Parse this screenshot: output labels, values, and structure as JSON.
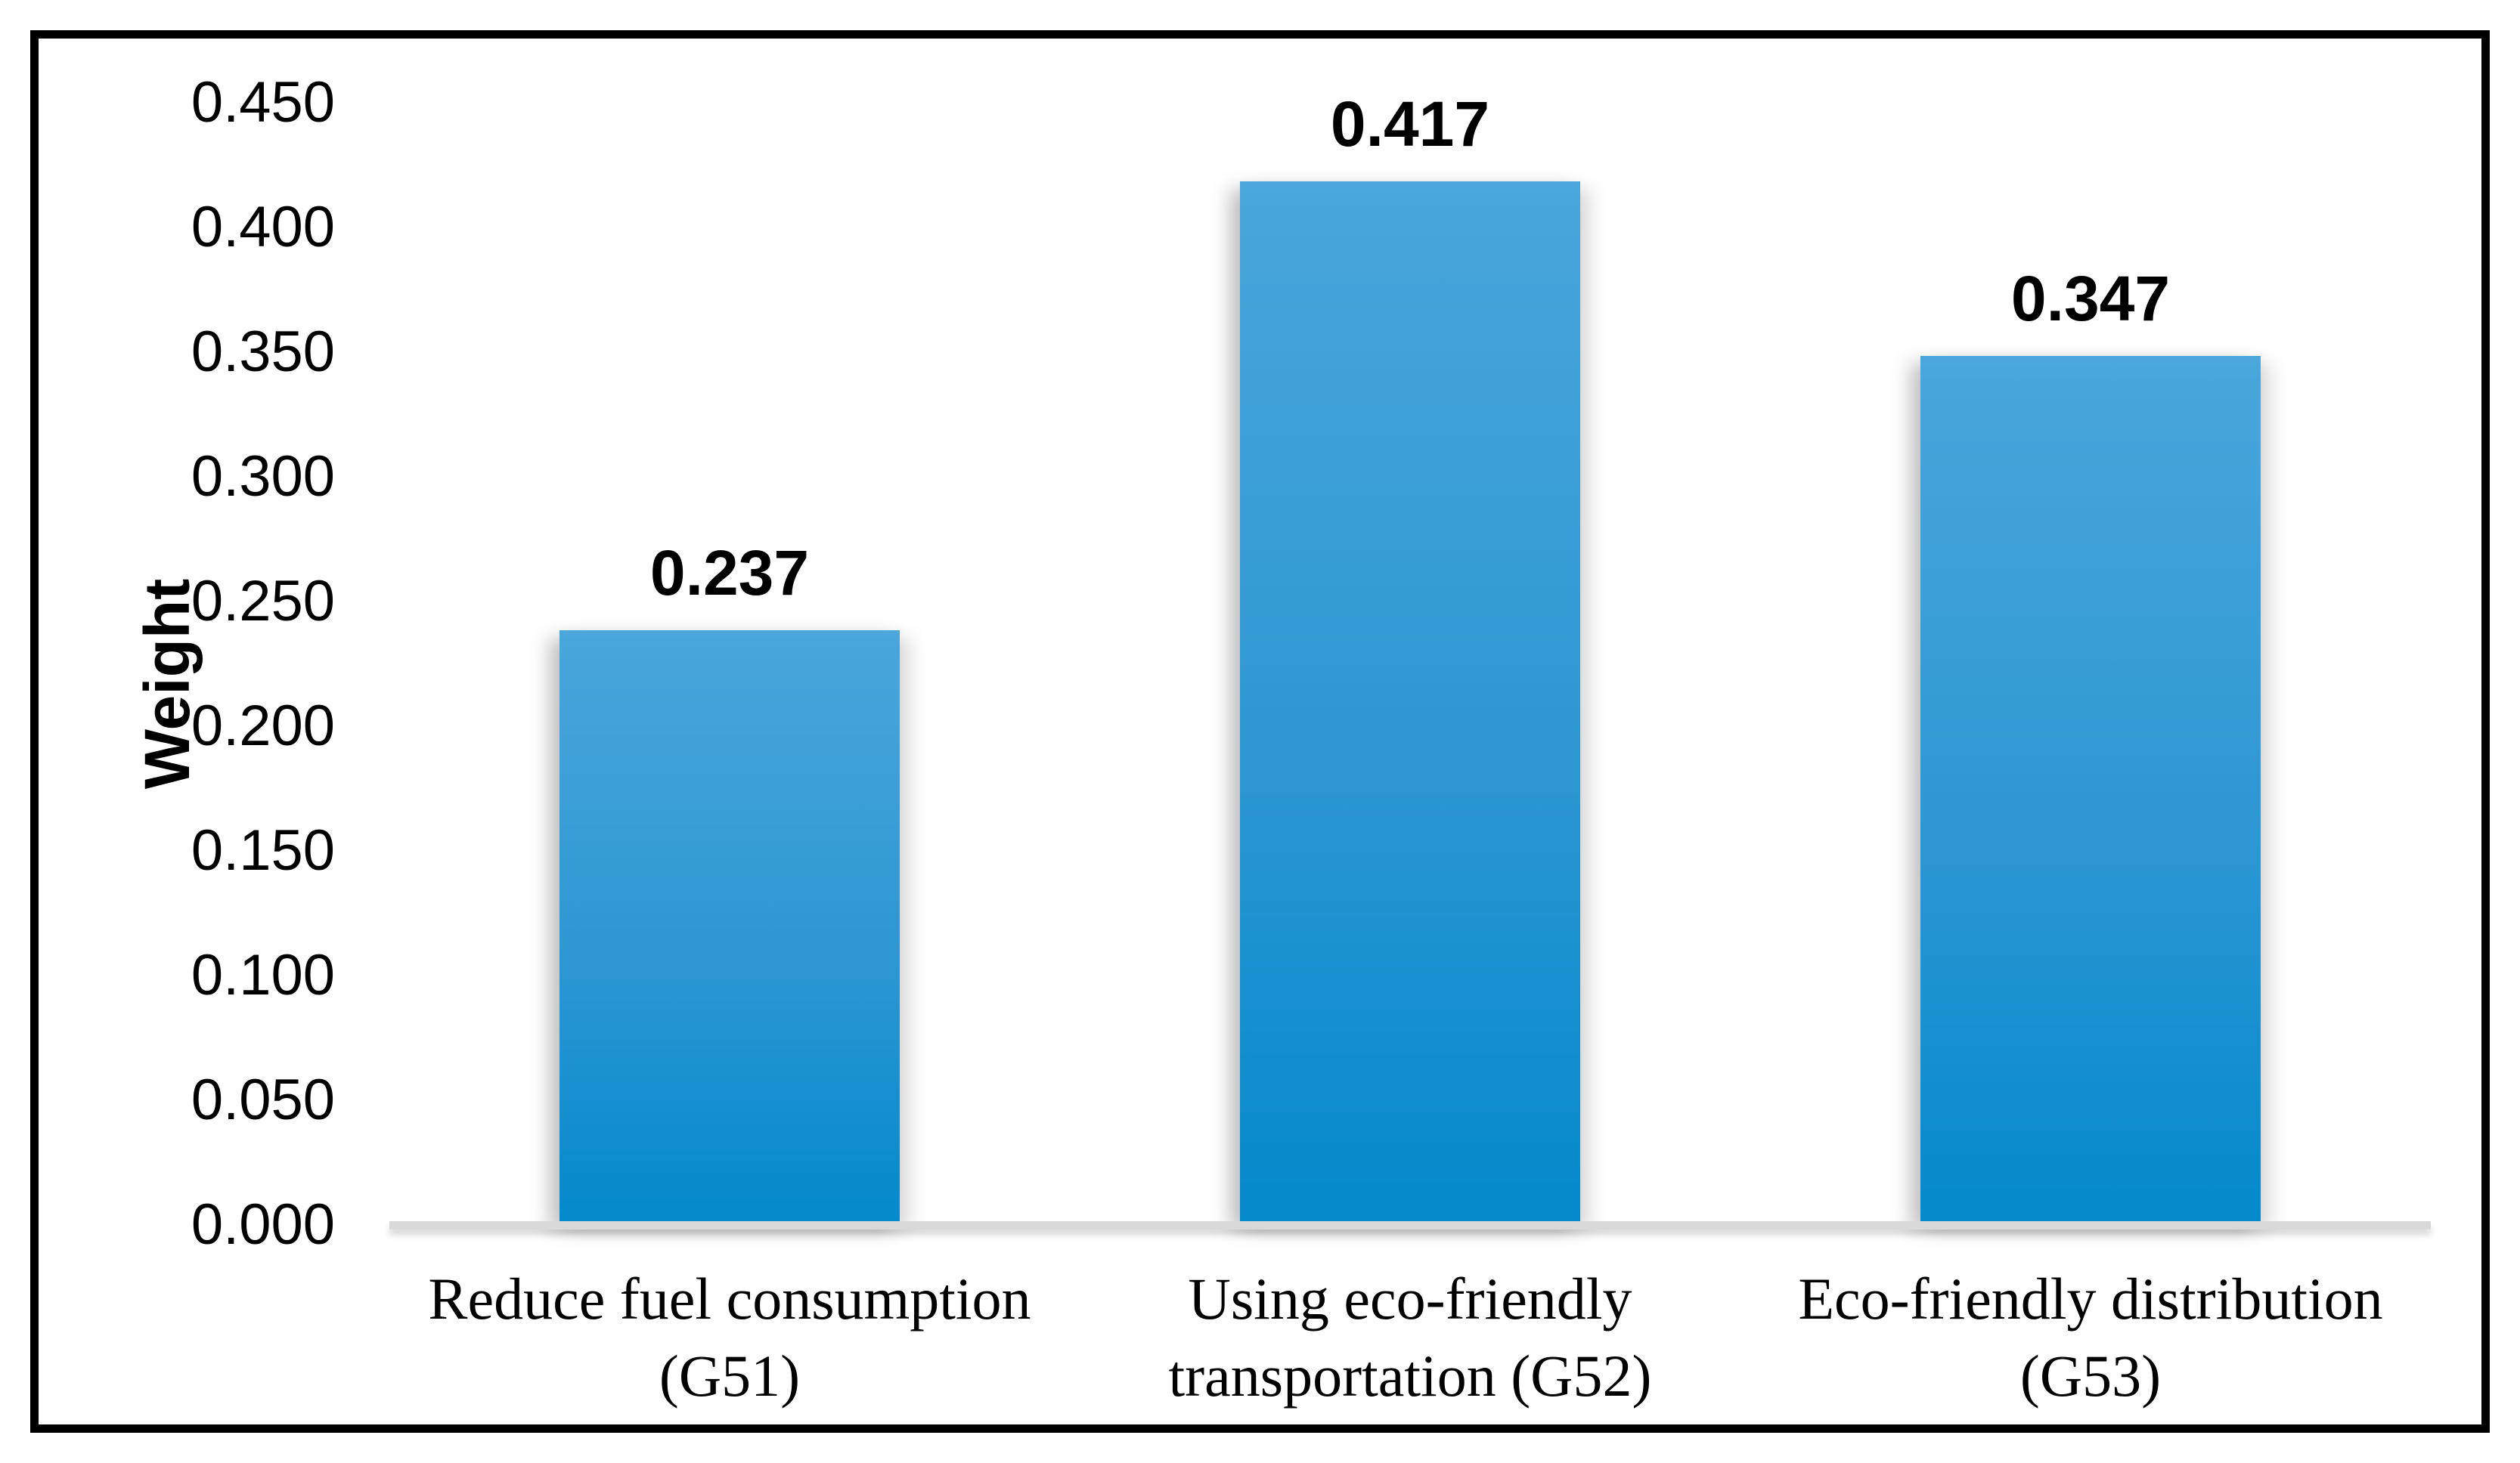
{
  "chart_data": {
    "type": "bar",
    "title": "",
    "xlabel": "",
    "ylabel": "Weight",
    "categories": [
      "Reduce fuel consumption (G51)",
      "Using eco-friendly transportation (G52)",
      "Eco-friendly distribution (G53)"
    ],
    "category_lines": [
      [
        "Reduce fuel consumption",
        "(G51)"
      ],
      [
        "Using eco-friendly",
        "transportation (G52)"
      ],
      [
        "Eco-friendly distribution",
        "(G53)"
      ]
    ],
    "values": [
      0.237,
      0.417,
      0.347
    ],
    "value_labels": [
      "0.237",
      "0.417",
      "0.347"
    ],
    "yticks": [
      "0.450",
      "0.400",
      "0.350",
      "0.300",
      "0.250",
      "0.200",
      "0.150",
      "0.100",
      "0.050",
      "0.000"
    ],
    "ylim": [
      0.0,
      0.45
    ],
    "ytick_step": 0.05,
    "grid": "off",
    "legend": "none",
    "bar_color_top": "#4aa6db",
    "bar_color_bottom": "#0489cb",
    "axis_line_color": "#d9d9d9",
    "frame_border_color": "#000000",
    "background_color": "#ffffff",
    "label_color": "#000000"
  }
}
